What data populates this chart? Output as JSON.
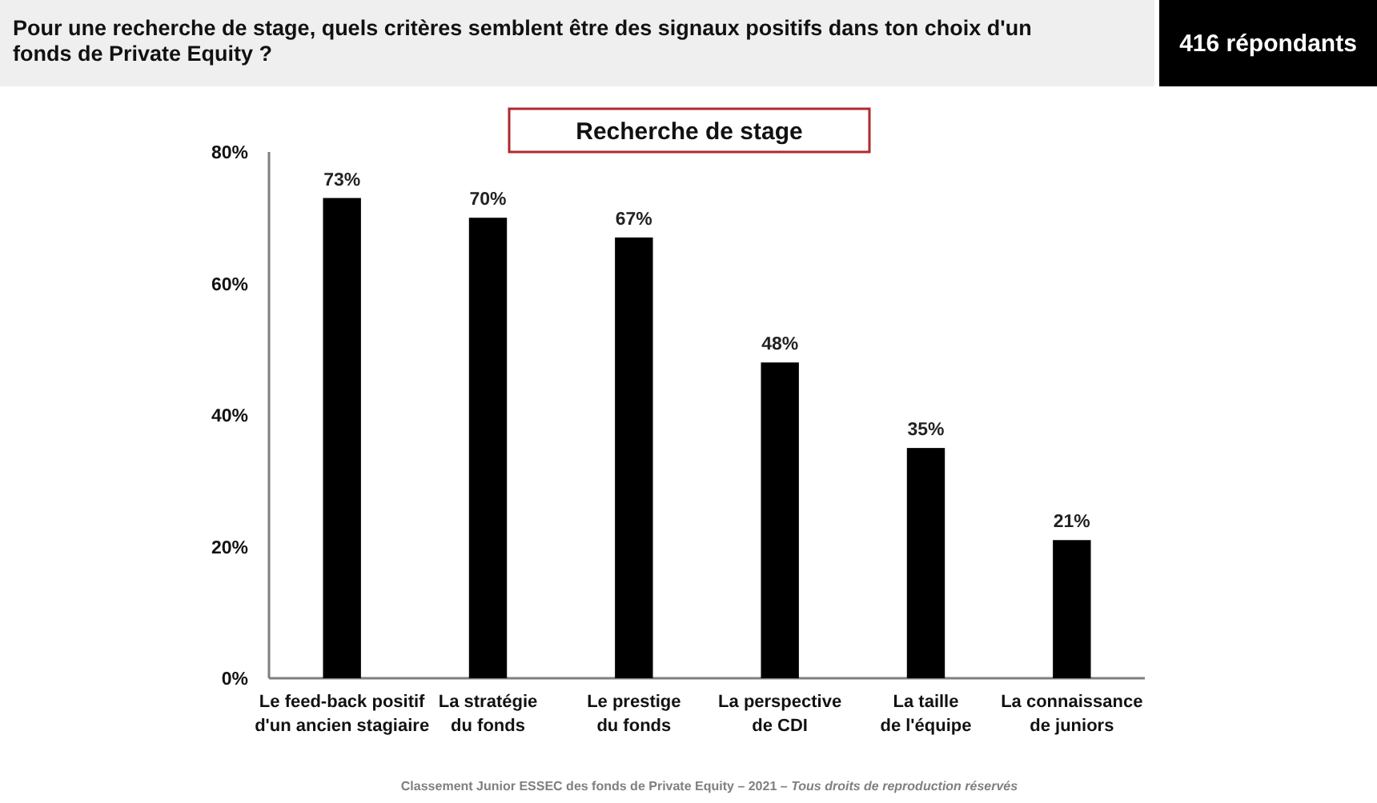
{
  "chart_data": {
    "type": "bar",
    "title": "Pour une recherche de stage, quels critères semblent être des signaux positifs dans ton choix d'un fonds de Private Equity ?",
    "subtitle": "Recherche de stage",
    "categories": [
      "Le feed-back positif\nd'un ancien stagiaire",
      "La stratégie\ndu fonds",
      "Le prestige\ndu fonds",
      "La perspective\nde CDI",
      "La taille\nde l'équipe",
      "La connaissance\nde juniors"
    ],
    "values": [
      73,
      70,
      67,
      48,
      35,
      21
    ],
    "color": "#000000",
    "value_labels": [
      "73%",
      "70%",
      "67%",
      "48%",
      "35%",
      "21%"
    ],
    "ylim": [
      0,
      80
    ],
    "yticks": [
      {
        "value": 0,
        "label": "0%"
      },
      {
        "value": 20,
        "label": "20%"
      },
      {
        "value": 40,
        "label": "40%"
      },
      {
        "value": 60,
        "label": "60%"
      },
      {
        "value": 80,
        "label": "80%"
      }
    ],
    "annotations": [
      "416 répondants",
      "Classement Junior ESSEC des fonds de Private Equity – 2021 – ",
      "Tous droits de reproduction réservés"
    ]
  }
}
